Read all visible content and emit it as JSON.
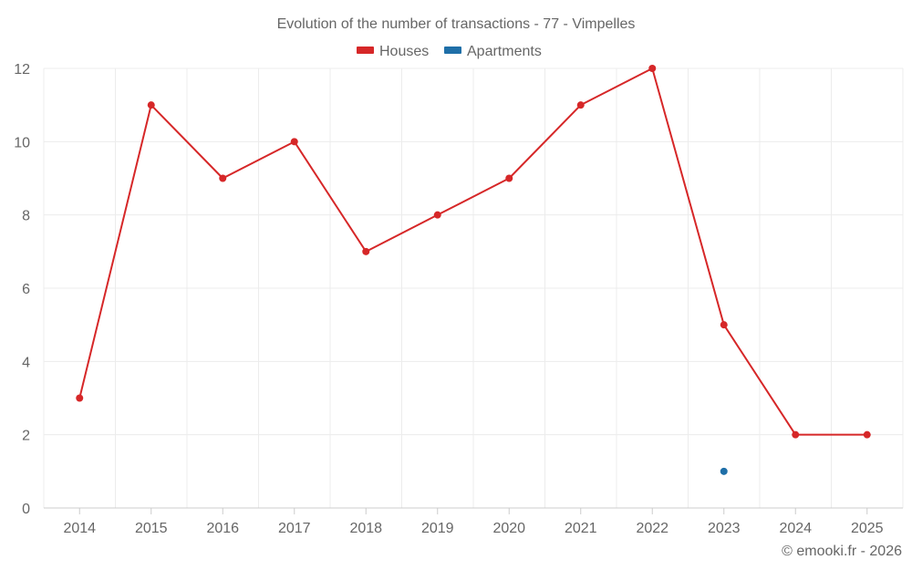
{
  "chart_data": {
    "type": "line",
    "title": "Evolution of the number of transactions - 77 - Vimpelles",
    "xlabel": "",
    "ylabel": "",
    "categories": [
      "2014",
      "2015",
      "2016",
      "2017",
      "2018",
      "2019",
      "2020",
      "2021",
      "2022",
      "2023",
      "2024",
      "2025"
    ],
    "ylim": [
      0,
      12
    ],
    "yticks": [
      0,
      2,
      4,
      6,
      8,
      10,
      12
    ],
    "grid": true,
    "legend_position": "top-center",
    "series": [
      {
        "name": "Houses",
        "color": "#d62728",
        "values": [
          3,
          11,
          9,
          10,
          7,
          8,
          9,
          11,
          12,
          5,
          2,
          2
        ]
      },
      {
        "name": "Apartments",
        "color": "#1f6fa8",
        "values": [
          null,
          null,
          null,
          null,
          null,
          null,
          null,
          null,
          null,
          1,
          null,
          null
        ]
      }
    ]
  },
  "credit": "© emooki.fr - 2026"
}
